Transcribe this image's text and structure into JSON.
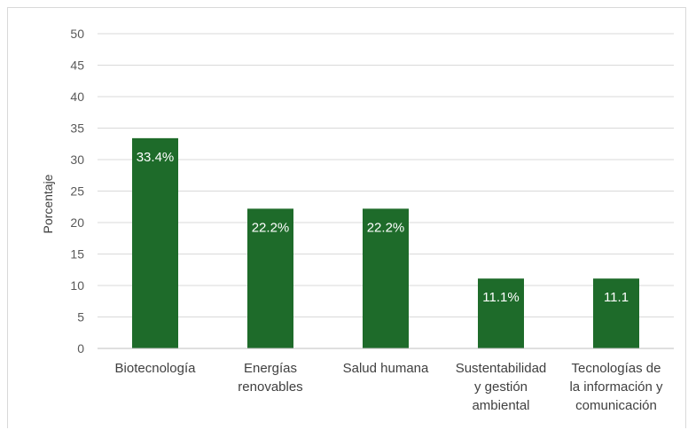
{
  "chart_data": {
    "type": "bar",
    "title": "",
    "xlabel": "",
    "ylabel": "Porcentaje",
    "ylim": [
      0,
      50
    ],
    "yticks": [
      0,
      5,
      10,
      15,
      20,
      25,
      30,
      35,
      40,
      45,
      50
    ],
    "grid": true,
    "legend": "none",
    "bar_color": "#1e6b2a",
    "categories": [
      [
        "Biotecnología"
      ],
      [
        "Energías",
        "renovables"
      ],
      [
        "Salud humana"
      ],
      [
        "Sustentabilidad",
        "y gestión",
        "ambiental"
      ],
      [
        "Tecnologías de",
        "la información y",
        "comunicación"
      ]
    ],
    "values": [
      33.4,
      22.2,
      22.2,
      11.1,
      11.1
    ],
    "data_labels": [
      "33.4%",
      "22.2%",
      "22.2%",
      "11.1%",
      "11.1"
    ]
  }
}
